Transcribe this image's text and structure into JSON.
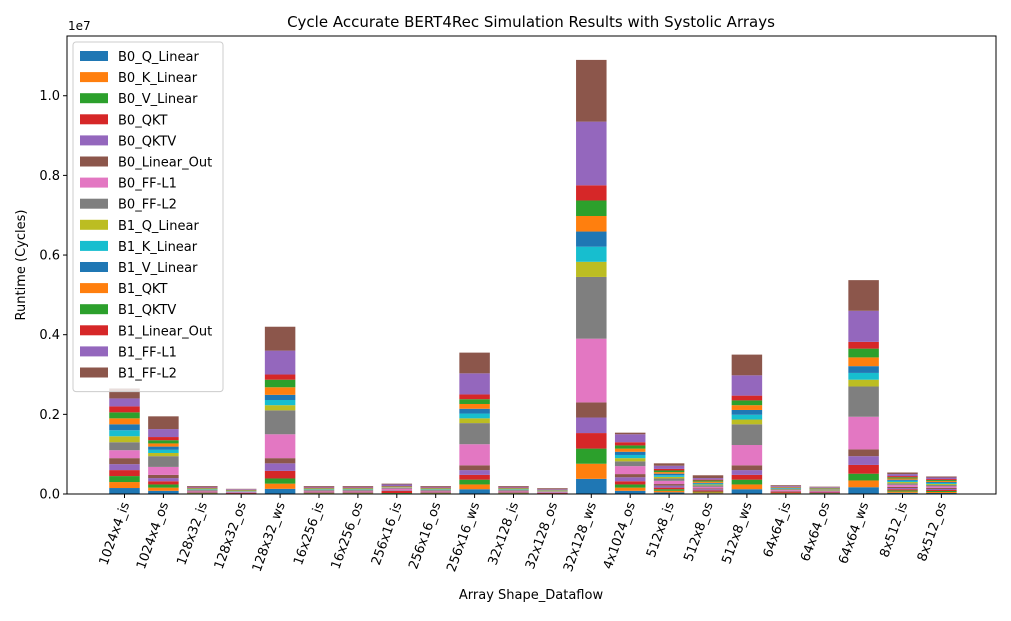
{
  "chart_data": {
    "type": "bar",
    "stacked": true,
    "title": "Cycle Accurate BERT4Rec Simulation Results with Systolic Arrays",
    "xlabel": "Array Shape_Dataflow",
    "ylabel": "Runtime (Cycles)",
    "y_scale_label": "1e7",
    "y_scale": 10000000,
    "ylim": [
      0,
      11500000
    ],
    "yticks": [
      0,
      2000000,
      4000000,
      6000000,
      8000000,
      10000000
    ],
    "ytick_labels": [
      "0.0",
      "0.2",
      "0.4",
      "0.6",
      "0.8",
      "1.0"
    ],
    "grid": false,
    "legend_position": "top-left",
    "categories": [
      "1024x4_is",
      "1024x4_os",
      "128x32_is",
      "128x32_os",
      "128x32_ws",
      "16x256_is",
      "16x256_os",
      "256x16_is",
      "256x16_os",
      "256x16_ws",
      "32x128_is",
      "32x128_os",
      "32x128_ws",
      "4x1024_os",
      "512x8_is",
      "512x8_os",
      "512x8_ws",
      "64x64_is",
      "64x64_os",
      "64x64_ws",
      "8x512_is",
      "8x512_os"
    ],
    "series": [
      {
        "name": "B0_Q_Linear",
        "color": "#1f77b4",
        "values": [
          150000,
          80000,
          10000,
          5000,
          130000,
          10000,
          10000,
          5000,
          10000,
          120000,
          10000,
          5000,
          380000,
          80000,
          40000,
          20000,
          120000,
          10000,
          8000,
          170000,
          30000,
          25000
        ]
      },
      {
        "name": "B0_K_Linear",
        "color": "#ff7f0e",
        "values": [
          150000,
          80000,
          10000,
          5000,
          130000,
          10000,
          10000,
          10000,
          10000,
          120000,
          10000,
          5000,
          380000,
          80000,
          40000,
          20000,
          120000,
          10000,
          8000,
          170000,
          30000,
          25000
        ]
      },
      {
        "name": "B0_V_Linear",
        "color": "#2ca02c",
        "values": [
          150000,
          80000,
          10000,
          5000,
          130000,
          10000,
          10000,
          10000,
          10000,
          120000,
          10000,
          5000,
          380000,
          80000,
          40000,
          20000,
          120000,
          10000,
          8000,
          170000,
          30000,
          25000
        ]
      },
      {
        "name": "B0_QKT",
        "color": "#d62728",
        "values": [
          150000,
          80000,
          10000,
          10000,
          190000,
          10000,
          10000,
          50000,
          10000,
          120000,
          10000,
          10000,
          390000,
          80000,
          40000,
          30000,
          120000,
          30000,
          15000,
          220000,
          30000,
          25000
        ]
      },
      {
        "name": "B0_QKTV",
        "color": "#9467bd",
        "values": [
          150000,
          80000,
          10000,
          10000,
          190000,
          10000,
          10000,
          10000,
          10000,
          120000,
          10000,
          10000,
          390000,
          100000,
          50000,
          30000,
          120000,
          10000,
          15000,
          220000,
          30000,
          25000
        ]
      },
      {
        "name": "B0_Linear_Out",
        "color": "#8c564b",
        "values": [
          150000,
          80000,
          10000,
          5000,
          130000,
          10000,
          10000,
          10000,
          10000,
          120000,
          10000,
          5000,
          380000,
          80000,
          40000,
          20000,
          120000,
          10000,
          8000,
          170000,
          30000,
          25000
        ]
      },
      {
        "name": "B0_FF-L1",
        "color": "#e377c2",
        "values": [
          200000,
          200000,
          20000,
          15000,
          600000,
          20000,
          20000,
          40000,
          20000,
          530000,
          20000,
          15000,
          1600000,
          200000,
          80000,
          40000,
          510000,
          20000,
          15000,
          820000,
          50000,
          40000
        ]
      },
      {
        "name": "B0_FF-L2",
        "color": "#7f7f7f",
        "values": [
          200000,
          270000,
          20000,
          10000,
          600000,
          20000,
          20000,
          20000,
          20000,
          530000,
          20000,
          15000,
          1550000,
          120000,
          60000,
          40000,
          520000,
          20000,
          15000,
          760000,
          40000,
          35000
        ]
      },
      {
        "name": "B1_Q_Linear",
        "color": "#bcbd22",
        "values": [
          150000,
          80000,
          10000,
          5000,
          130000,
          10000,
          10000,
          5000,
          10000,
          120000,
          10000,
          5000,
          380000,
          80000,
          40000,
          20000,
          120000,
          10000,
          8000,
          170000,
          30000,
          25000
        ]
      },
      {
        "name": "B1_K_Linear",
        "color": "#17becf",
        "values": [
          150000,
          80000,
          10000,
          5000,
          130000,
          10000,
          10000,
          5000,
          10000,
          120000,
          10000,
          5000,
          380000,
          80000,
          40000,
          20000,
          120000,
          10000,
          8000,
          170000,
          30000,
          25000
        ]
      },
      {
        "name": "B1_V_Linear",
        "color": "#1f77b4",
        "values": [
          150000,
          80000,
          10000,
          5000,
          130000,
          10000,
          10000,
          5000,
          10000,
          120000,
          10000,
          5000,
          380000,
          80000,
          40000,
          20000,
          120000,
          10000,
          8000,
          170000,
          30000,
          25000
        ]
      },
      {
        "name": "B1_QKT",
        "color": "#ff7f0e",
        "values": [
          150000,
          80000,
          10000,
          10000,
          190000,
          10000,
          10000,
          10000,
          10000,
          120000,
          10000,
          10000,
          390000,
          80000,
          40000,
          30000,
          120000,
          10000,
          15000,
          220000,
          30000,
          25000
        ]
      },
      {
        "name": "B1_QKTV",
        "color": "#2ca02c",
        "values": [
          150000,
          80000,
          10000,
          10000,
          190000,
          10000,
          10000,
          10000,
          10000,
          120000,
          10000,
          10000,
          390000,
          80000,
          40000,
          30000,
          120000,
          10000,
          15000,
          220000,
          30000,
          25000
        ]
      },
      {
        "name": "B1_Linear_Out",
        "color": "#d62728",
        "values": [
          150000,
          80000,
          10000,
          5000,
          130000,
          10000,
          10000,
          10000,
          10000,
          120000,
          10000,
          5000,
          380000,
          80000,
          40000,
          20000,
          120000,
          10000,
          8000,
          170000,
          30000,
          25000
        ]
      },
      {
        "name": "B1_FF-L1",
        "color": "#9467bd",
        "values": [
          200000,
          200000,
          20000,
          15000,
          600000,
          20000,
          20000,
          40000,
          20000,
          530000,
          20000,
          15000,
          1600000,
          200000,
          80000,
          40000,
          510000,
          20000,
          15000,
          780000,
          50000,
          40000
        ]
      },
      {
        "name": "B1_FF-L2",
        "color": "#8c564b",
        "values": [
          250000,
          320000,
          20000,
          10000,
          600000,
          20000,
          20000,
          20000,
          20000,
          520000,
          20000,
          20000,
          1550000,
          40000,
          60000,
          70000,
          520000,
          20000,
          15000,
          770000,
          40000,
          25000
        ]
      }
    ]
  }
}
